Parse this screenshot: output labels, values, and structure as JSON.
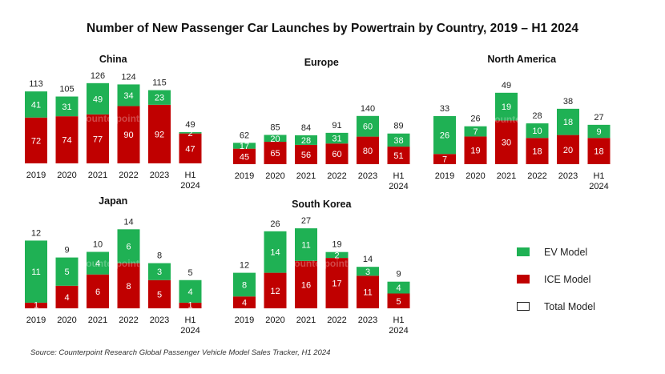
{
  "colors": {
    "ev": "#1fb154",
    "ice": "#c00000",
    "text": "#111111"
  },
  "chart_data": {
    "type": "bar",
    "stacked": true,
    "title": "Number of New Passenger Car Launches by Powertrain by Country, 2019 – H1 2024",
    "source": "Source: Counterpoint Research Global Passenger Vehicle Model Sales Tracker, H1 2024",
    "watermark": "Counterpoint",
    "legend": {
      "ev": "EV Model",
      "ice": "ICE Model",
      "total": "Total Model"
    },
    "panels": [
      {
        "name": "China",
        "categories": [
          "2019",
          "2020",
          "2021",
          "2022",
          "2023",
          "H1 2024"
        ],
        "ice": [
          72,
          74,
          77,
          90,
          92,
          47
        ],
        "ev": [
          41,
          31,
          49,
          34,
          23,
          2
        ],
        "total": [
          113,
          105,
          126,
          124,
          115,
          49
        ]
      },
      {
        "name": "Europe",
        "categories": [
          "2019",
          "2020",
          "2021",
          "2022",
          "2023",
          "H1 2024"
        ],
        "ice": [
          45,
          65,
          56,
          60,
          80,
          51
        ],
        "ev": [
          17,
          20,
          28,
          31,
          60,
          38
        ],
        "total": [
          62,
          85,
          84,
          91,
          140,
          89
        ]
      },
      {
        "name": "North America",
        "categories": [
          "2019",
          "2020",
          "2021",
          "2022",
          "2023",
          "H1 2024"
        ],
        "ice": [
          7,
          19,
          30,
          18,
          20,
          18
        ],
        "ev": [
          26,
          7,
          19,
          10,
          18,
          9
        ],
        "total": [
          33,
          26,
          49,
          28,
          38,
          27
        ]
      },
      {
        "name": "Japan",
        "categories": [
          "2019",
          "2020",
          "2021",
          "2022",
          "2023",
          "H1 2024"
        ],
        "ice": [
          1,
          4,
          6,
          8,
          5,
          1
        ],
        "ev": [
          11,
          5,
          4,
          6,
          3,
          4
        ],
        "total": [
          12,
          9,
          10,
          14,
          8,
          5
        ]
      },
      {
        "name": "South Korea",
        "categories": [
          "2019",
          "2020",
          "2021",
          "2022",
          "2023",
          "H1 2024"
        ],
        "ice": [
          4,
          12,
          16,
          17,
          11,
          5
        ],
        "ev": [
          8,
          14,
          11,
          2,
          3,
          4
        ],
        "total": [
          12,
          26,
          27,
          19,
          14,
          9
        ]
      }
    ]
  }
}
